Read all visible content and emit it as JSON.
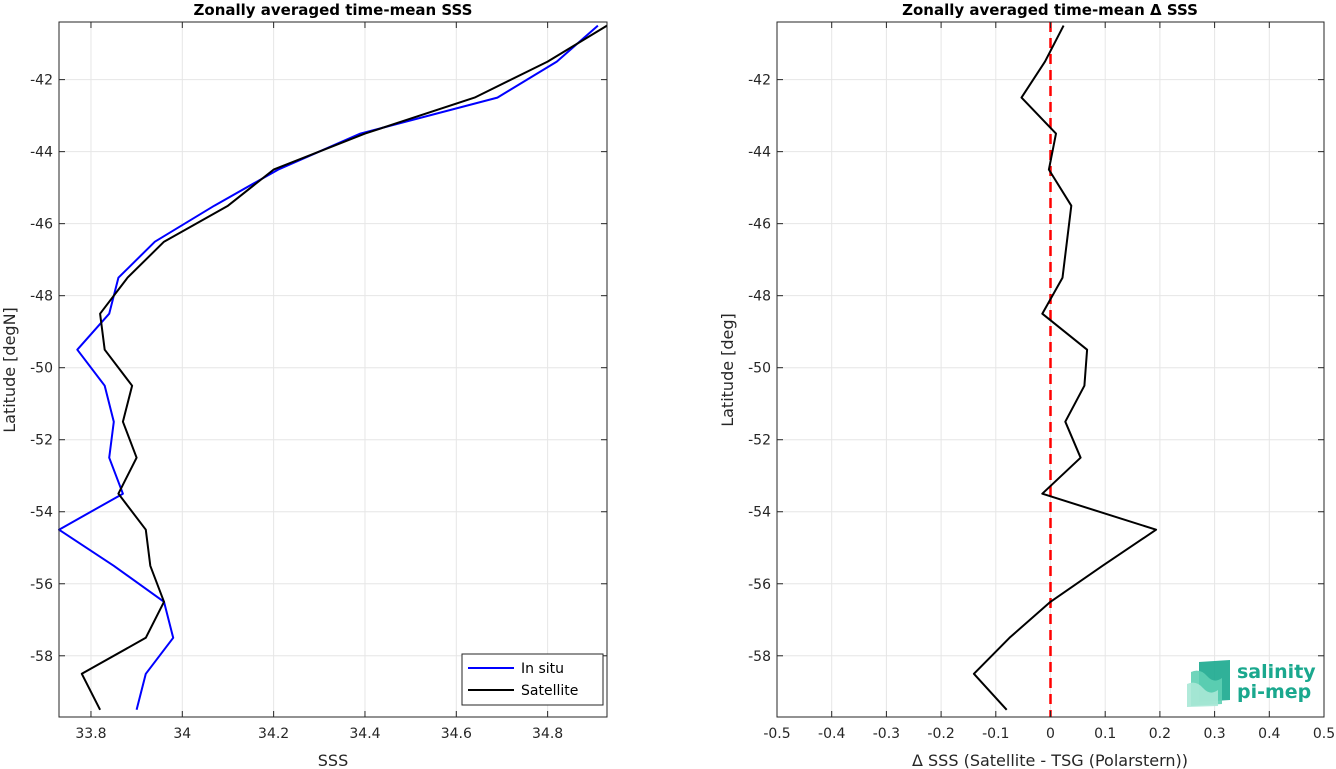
{
  "chart_data": [
    {
      "type": "line",
      "title": "Zonally averaged time-mean SSS",
      "xlabel": "SSS",
      "ylabel": "Latitude [degN]",
      "xlim": [
        33.73,
        34.93
      ],
      "ylim": [
        -59.7,
        -40.4
      ],
      "xticks": [
        33.8,
        34.0,
        34.2,
        34.4,
        34.6,
        34.8
      ],
      "xticklabels": [
        "33.8",
        "34",
        "34.2",
        "34.4",
        "34.6",
        "34.8"
      ],
      "yticks": [
        -58,
        -56,
        -54,
        -52,
        -50,
        -48,
        -46,
        -44,
        -42
      ],
      "yticklabels": [
        "-58",
        "-56",
        "-54",
        "-52",
        "-50",
        "-48",
        "-46",
        "-44",
        "-42"
      ],
      "grid": true,
      "legend_position": "bottom-right",
      "series": [
        {
          "name": "In situ",
          "color": "#0000ff",
          "points": [
            [
              34.91,
              -40.5
            ],
            [
              34.82,
              -41.5
            ],
            [
              34.69,
              -42.5
            ],
            [
              34.39,
              -43.5
            ],
            [
              34.21,
              -44.5
            ],
            [
              34.07,
              -45.5
            ],
            [
              33.94,
              -46.5
            ],
            [
              33.86,
              -47.5
            ],
            [
              33.84,
              -48.5
            ],
            [
              33.77,
              -49.5
            ],
            [
              33.83,
              -50.5
            ],
            [
              33.85,
              -51.5
            ],
            [
              33.84,
              -52.5
            ],
            [
              33.87,
              -53.5
            ],
            [
              33.73,
              -54.5
            ],
            [
              33.85,
              -55.5
            ],
            [
              33.96,
              -56.5
            ],
            [
              33.98,
              -57.5
            ],
            [
              33.92,
              -58.5
            ],
            [
              33.9,
              -59.5
            ]
          ]
        },
        {
          "name": "Satellite",
          "color": "#000000",
          "points": [
            [
              34.93,
              -40.5
            ],
            [
              34.8,
              -41.5
            ],
            [
              34.64,
              -42.5
            ],
            [
              34.4,
              -43.5
            ],
            [
              34.2,
              -44.5
            ],
            [
              34.1,
              -45.5
            ],
            [
              33.96,
              -46.5
            ],
            [
              33.88,
              -47.5
            ],
            [
              33.82,
              -48.5
            ],
            [
              33.83,
              -49.5
            ],
            [
              33.89,
              -50.5
            ],
            [
              33.87,
              -51.5
            ],
            [
              33.9,
              -52.5
            ],
            [
              33.86,
              -53.5
            ],
            [
              33.92,
              -54.5
            ],
            [
              33.93,
              -55.5
            ],
            [
              33.96,
              -56.5
            ],
            [
              33.92,
              -57.5
            ],
            [
              33.78,
              -58.5
            ],
            [
              33.82,
              -59.5
            ]
          ]
        }
      ]
    },
    {
      "type": "line",
      "title": "Zonally averaged time-mean Δ SSS",
      "xlabel": "Δ SSS (Satellite - TSG (Polarstern))",
      "ylabel": "Latitude [deg]",
      "xlim": [
        -0.5,
        0.5
      ],
      "ylim": [
        -59.7,
        -40.4
      ],
      "xticks": [
        -0.5,
        -0.4,
        -0.3,
        -0.2,
        -0.1,
        0,
        0.1,
        0.2,
        0.3,
        0.4,
        0.5
      ],
      "xticklabels": [
        "-0.5",
        "-0.4",
        "-0.3",
        "-0.2",
        "-0.1",
        "0",
        "0.1",
        "0.2",
        "0.3",
        "0.4",
        "0.5"
      ],
      "yticks": [
        -58,
        -56,
        -54,
        -52,
        -50,
        -48,
        -46,
        -44,
        -42
      ],
      "yticklabels": [
        "-58",
        "-56",
        "-54",
        "-52",
        "-50",
        "-48",
        "-46",
        "-44",
        "-42"
      ],
      "grid": true,
      "reference_line": {
        "x": 0,
        "color": "#ff0000",
        "style": "dashed"
      },
      "series": [
        {
          "color": "#000000",
          "points": [
            [
              0.024,
              -40.5
            ],
            [
              -0.01,
              -41.5
            ],
            [
              -0.053,
              -42.5
            ],
            [
              0.01,
              -43.5
            ],
            [
              -0.003,
              -44.5
            ],
            [
              0.038,
              -45.5
            ],
            [
              0.03,
              -46.5
            ],
            [
              0.022,
              -47.5
            ],
            [
              -0.015,
              -48.5
            ],
            [
              0.067,
              -49.5
            ],
            [
              0.062,
              -50.5
            ],
            [
              0.027,
              -51.5
            ],
            [
              0.055,
              -52.5
            ],
            [
              -0.015,
              -53.5
            ],
            [
              0.193,
              -54.5
            ],
            [
              0.095,
              -55.5
            ],
            [
              0.0,
              -56.5
            ],
            [
              -0.075,
              -57.5
            ],
            [
              -0.14,
              -58.5
            ],
            [
              -0.08,
              -59.5
            ]
          ]
        }
      ]
    }
  ],
  "legend": {
    "items": [
      {
        "label": "In situ",
        "color": "#0000ff"
      },
      {
        "label": "Satellite",
        "color": "#000000"
      }
    ]
  },
  "logo": {
    "line1": "salinity",
    "line2": "pi-mep",
    "color": "#1aa88e",
    "dark_color": "#2a2a2a"
  }
}
